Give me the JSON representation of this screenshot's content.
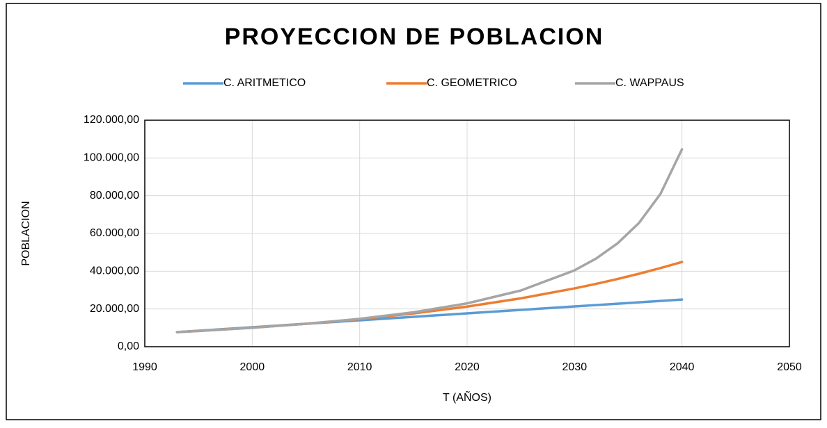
{
  "chart_data": {
    "type": "line",
    "title": "PROYECCION DE POBLACION",
    "x_label": "T (AÑOS)",
    "y_label": "POBLACION",
    "x": [
      1993,
      1995,
      2000,
      2005,
      2010,
      2015,
      2020,
      2025,
      2030,
      2032,
      2034,
      2036,
      2038,
      2040
    ],
    "series": [
      {
        "name": "C. ARITMETICO",
        "color": "#5b9bd5",
        "values": [
          7750,
          8484,
          10319,
          12154,
          13989,
          15824,
          17659,
          19494,
          21329,
          22063,
          22797,
          23531,
          24265,
          24999
        ]
      },
      {
        "name": "C. GEOMETRICO",
        "color": "#ed7d31",
        "values": [
          7750,
          8350,
          10066,
          12135,
          14626,
          17637,
          21260,
          25628,
          30891,
          33290,
          35866,
          38650,
          41655,
          44900
        ]
      },
      {
        "name": "C. WAPPAUS",
        "color": "#a5a5a5",
        "values": [
          7750,
          8340,
          10033,
          12124,
          14772,
          18235,
          22955,
          29770,
          40460,
          46685,
          54737,
          65573,
          80972,
          104600
        ]
      }
    ],
    "xlim": [
      1990,
      2050
    ],
    "xticks": [
      1990,
      2000,
      2010,
      2020,
      2030,
      2040,
      2050
    ],
    "ylim": [
      0,
      120000
    ],
    "yticks": [
      {
        "value": 0,
        "label": "0,00"
      },
      {
        "value": 20000,
        "label": "20.000,00"
      },
      {
        "value": 40000,
        "label": "40.000,00"
      },
      {
        "value": 60000,
        "label": "60.000,00"
      },
      {
        "value": 80000,
        "label": "80.000,00"
      },
      {
        "value": 100000,
        "label": "100.000,00"
      },
      {
        "value": 120000,
        "label": "120.000,00"
      }
    ],
    "grid": true,
    "legend": "top"
  }
}
